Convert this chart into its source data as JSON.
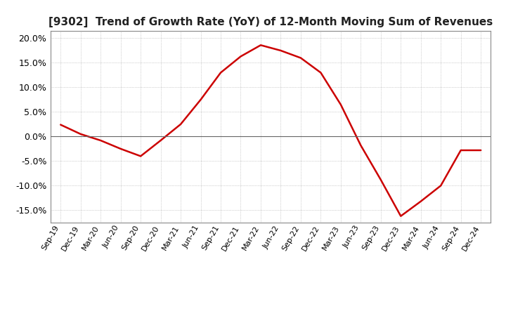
{
  "title": "[9302]  Trend of Growth Rate (YoY) of 12-Month Moving Sum of Revenues",
  "title_fontsize": 11,
  "line_color": "#cc0000",
  "background_color": "#ffffff",
  "grid_color": "#aaaaaa",
  "zero_line_color": "#666666",
  "ylim": [
    -0.175,
    0.215
  ],
  "yticks": [
    -0.15,
    -0.1,
    -0.05,
    0.0,
    0.05,
    0.1,
    0.15,
    0.2
  ],
  "xlabels": [
    "Sep-19",
    "Dec-19",
    "Mar-20",
    "Jun-20",
    "Sep-20",
    "Dec-20",
    "Mar-21",
    "Jun-21",
    "Sep-21",
    "Dec-21",
    "Mar-22",
    "Jun-22",
    "Sep-22",
    "Dec-22",
    "Mar-23",
    "Jun-23",
    "Sep-23",
    "Dec-23",
    "Mar-24",
    "Jun-24",
    "Sep-24",
    "Dec-24"
  ],
  "yvalues": [
    0.024,
    0.005,
    -0.008,
    -0.025,
    -0.04,
    -0.008,
    0.025,
    0.075,
    0.13,
    0.163,
    0.186,
    0.175,
    0.16,
    0.13,
    0.065,
    -0.018,
    -0.088,
    -0.162,
    -0.132,
    -0.1,
    -0.028,
    -0.028
  ]
}
